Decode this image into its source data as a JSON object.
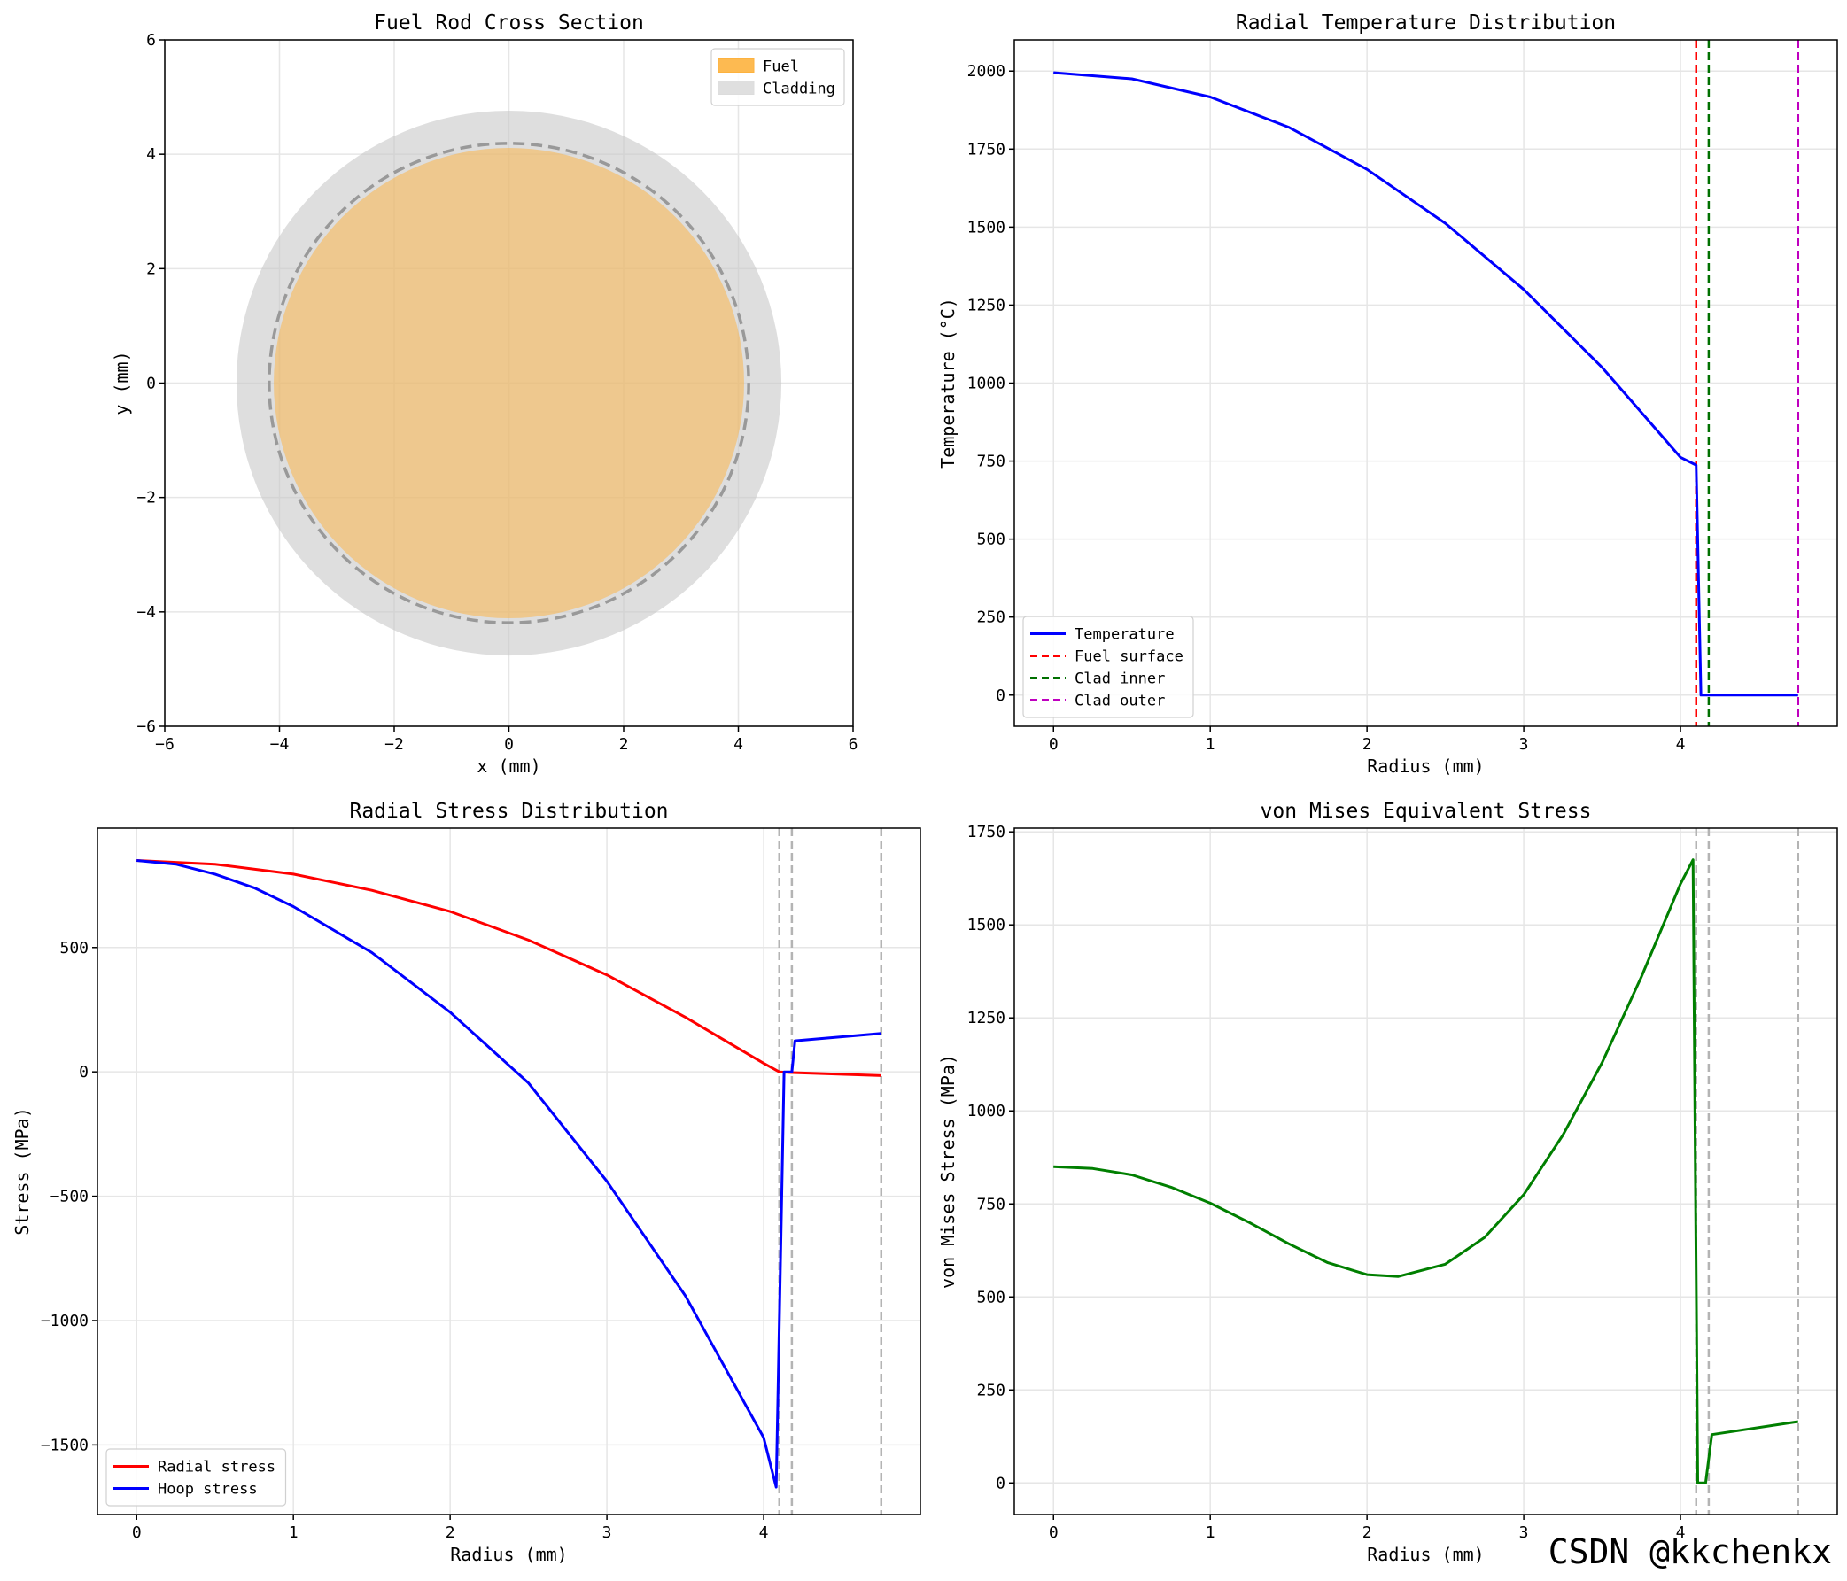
{
  "watermark": "CSDN @kkchenkx",
  "chart_data": [
    {
      "id": "cross",
      "type": "scatter",
      "title": "Fuel Rod Cross Section",
      "xlabel": "x (mm)",
      "ylabel": "y (mm)",
      "xlim": [
        -6,
        6
      ],
      "ylim": [
        -6,
        6
      ],
      "xticks": [
        -6,
        -4,
        -2,
        0,
        2,
        4,
        6
      ],
      "yticks": [
        -6,
        -4,
        -2,
        0,
        2,
        4,
        6
      ],
      "grid": true,
      "legend_position": "top-right",
      "shapes": [
        {
          "name": "Cladding",
          "kind": "circle",
          "cx": 0,
          "cy": 0,
          "r": 4.75,
          "fill": "#c8c8c8",
          "opacity": 0.6
        },
        {
          "name": "Fuel",
          "kind": "circle",
          "cx": 0,
          "cy": 0,
          "r": 4.1,
          "fill": "#fdb23e",
          "opacity": 0.5
        },
        {
          "name": "Gap boundary",
          "kind": "circle",
          "cx": 0,
          "cy": 0,
          "r": 4.18,
          "stroke": "#999999",
          "dashed": true
        }
      ],
      "legend": [
        {
          "label": "Fuel",
          "color": "#fdb23e",
          "kind": "patch"
        },
        {
          "label": "Cladding",
          "color": "#dcdcdc",
          "kind": "patch"
        }
      ]
    },
    {
      "id": "temp",
      "type": "line",
      "title": "Radial Temperature Distribution",
      "xlabel": "Radius (mm)",
      "ylabel": "Temperature (°C)",
      "xlim": [
        -0.25,
        5.0
      ],
      "ylim": [
        -100,
        2100
      ],
      "xticks": [
        0,
        1,
        2,
        3,
        4
      ],
      "yticks": [
        0,
        250,
        500,
        750,
        1000,
        1250,
        1500,
        1750,
        2000
      ],
      "grid": true,
      "legend_position": "bottom-left",
      "series": [
        {
          "name": "Temperature",
          "color": "#0000ff",
          "width": 3,
          "x": [
            0,
            0.5,
            1.0,
            1.5,
            2.0,
            2.5,
            3.0,
            3.5,
            4.0,
            4.1,
            4.13,
            4.18,
            4.75
          ],
          "y": [
            1995,
            1975,
            1917,
            1820,
            1685,
            1512,
            1300,
            1050,
            762,
            737,
            0,
            0,
            0
          ]
        }
      ],
      "vlines": [
        {
          "name": "Fuel surface",
          "x": 4.1,
          "color": "#ff0000"
        },
        {
          "name": "Clad inner",
          "x": 4.18,
          "color": "#007000"
        },
        {
          "name": "Clad outer",
          "x": 4.75,
          "color": "#bf00bf"
        }
      ],
      "legend": [
        {
          "label": "Temperature",
          "color": "#0000ff",
          "kind": "solid"
        },
        {
          "label": "Fuel surface",
          "color": "#ff0000",
          "kind": "dashed"
        },
        {
          "label": "Clad inner",
          "color": "#007000",
          "kind": "dashed"
        },
        {
          "label": "Clad outer",
          "color": "#bf00bf",
          "kind": "dashed"
        }
      ]
    },
    {
      "id": "stress",
      "type": "line",
      "title": "Radial Stress Distribution",
      "xlabel": "Radius (mm)",
      "ylabel": "Stress (MPa)",
      "xlim": [
        -0.25,
        5.0
      ],
      "ylim": [
        -1780,
        980
      ],
      "xticks": [
        0,
        1,
        2,
        3,
        4
      ],
      "yticks": [
        -1500,
        -1000,
        -500,
        0,
        500
      ],
      "grid": true,
      "legend_position": "bottom-left",
      "series": [
        {
          "name": "Radial stress",
          "color": "#ff0000",
          "width": 3,
          "x": [
            0,
            0.5,
            1.0,
            1.5,
            2.0,
            2.5,
            3.0,
            3.5,
            4.0,
            4.1,
            4.18,
            4.75
          ],
          "y": [
            850,
            835,
            795,
            730,
            645,
            530,
            390,
            220,
            35,
            0,
            -3,
            -15
          ]
        },
        {
          "name": "Hoop stress",
          "color": "#0000ff",
          "width": 3,
          "x": [
            0,
            0.25,
            0.5,
            0.75,
            1.0,
            1.5,
            2.0,
            2.5,
            3.0,
            3.5,
            4.0,
            4.08,
            4.13,
            4.18,
            4.2,
            4.75
          ],
          "y": [
            850,
            835,
            795,
            740,
            665,
            480,
            240,
            -45,
            -440,
            -900,
            -1470,
            -1670,
            0,
            0,
            125,
            155
          ]
        }
      ],
      "vlines": [
        {
          "x": 4.1,
          "color": "#b4b4b4"
        },
        {
          "x": 4.18,
          "color": "#b4b4b4"
        },
        {
          "x": 4.75,
          "color": "#b4b4b4"
        }
      ],
      "legend": [
        {
          "label": "Radial stress",
          "color": "#ff0000",
          "kind": "solid"
        },
        {
          "label": "Hoop stress",
          "color": "#0000ff",
          "kind": "solid"
        }
      ]
    },
    {
      "id": "vm",
      "type": "line",
      "title": "von Mises Equivalent Stress",
      "xlabel": "Radius (mm)",
      "ylabel": "von Mises Stress (MPa)",
      "xlim": [
        -0.25,
        5.0
      ],
      "ylim": [
        -85,
        1760
      ],
      "xticks": [
        0,
        1,
        2,
        3,
        4
      ],
      "yticks": [
        0,
        250,
        500,
        750,
        1000,
        1250,
        1500,
        1750
      ],
      "grid": true,
      "series": [
        {
          "name": "von Mises",
          "color": "#007f00",
          "width": 3,
          "x": [
            0,
            0.25,
            0.5,
            0.75,
            1.0,
            1.25,
            1.5,
            1.75,
            2.0,
            2.2,
            2.5,
            2.75,
            3.0,
            3.25,
            3.5,
            3.75,
            4.0,
            4.08,
            4.11,
            4.16,
            4.2,
            4.75
          ],
          "y": [
            850,
            845,
            828,
            795,
            752,
            700,
            643,
            592,
            560,
            555,
            588,
            660,
            775,
            935,
            1130,
            1360,
            1610,
            1675,
            0,
            0,
            130,
            165
          ]
        }
      ],
      "vlines": [
        {
          "x": 4.1,
          "color": "#b4b4b4"
        },
        {
          "x": 4.18,
          "color": "#b4b4b4"
        },
        {
          "x": 4.75,
          "color": "#b4b4b4"
        }
      ]
    }
  ]
}
